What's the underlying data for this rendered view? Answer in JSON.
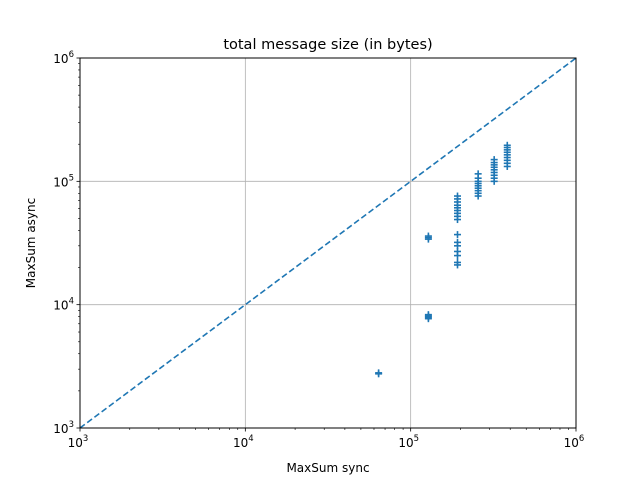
{
  "chart_data": {
    "type": "scatter",
    "title": "total message size (in bytes)",
    "xlabel": "MaxSum sync",
    "ylabel": "MaxSum async",
    "xscale": "log",
    "yscale": "log",
    "xlim": [
      1000,
      1000000
    ],
    "ylim": [
      1000,
      1000000
    ],
    "grid": true,
    "x_ticks": [
      {
        "base": "10",
        "exp": "3"
      },
      {
        "base": "10",
        "exp": "4"
      },
      {
        "base": "10",
        "exp": "5"
      },
      {
        "base": "10",
        "exp": "6"
      }
    ],
    "y_ticks": [
      {
        "base": "10",
        "exp": "3"
      },
      {
        "base": "10",
        "exp": "4"
      },
      {
        "base": "10",
        "exp": "5"
      },
      {
        "base": "10",
        "exp": "6"
      }
    ],
    "series": [
      {
        "marker": "+",
        "color": "#1f77b4",
        "points": [
          [
            64000,
            2750
          ],
          [
            64000,
            2800
          ],
          [
            128000,
            7700
          ],
          [
            128000,
            7900
          ],
          [
            128000,
            8100
          ],
          [
            128000,
            8300
          ],
          [
            128000,
            34000
          ],
          [
            128000,
            35000
          ],
          [
            128000,
            36000
          ],
          [
            192000,
            21000
          ],
          [
            192000,
            22000
          ],
          [
            192000,
            25000
          ],
          [
            192000,
            27000
          ],
          [
            192000,
            30000
          ],
          [
            192000,
            32000
          ],
          [
            192000,
            37000
          ],
          [
            192000,
            49000
          ],
          [
            192000,
            52000
          ],
          [
            192000,
            55000
          ],
          [
            192000,
            58000
          ],
          [
            192000,
            61000
          ],
          [
            192000,
            64000
          ],
          [
            192000,
            68000
          ],
          [
            192000,
            72000
          ],
          [
            192000,
            76000
          ],
          [
            256000,
            76000
          ],
          [
            256000,
            80000
          ],
          [
            256000,
            84000
          ],
          [
            256000,
            88000
          ],
          [
            256000,
            92000
          ],
          [
            256000,
            96000
          ],
          [
            256000,
            100000
          ],
          [
            256000,
            106000
          ],
          [
            256000,
            115000
          ],
          [
            320000,
            100000
          ],
          [
            320000,
            106000
          ],
          [
            320000,
            112000
          ],
          [
            320000,
            118000
          ],
          [
            320000,
            124000
          ],
          [
            320000,
            130000
          ],
          [
            320000,
            136000
          ],
          [
            320000,
            142000
          ],
          [
            320000,
            150000
          ],
          [
            384000,
            132000
          ],
          [
            384000,
            140000
          ],
          [
            384000,
            148000
          ],
          [
            384000,
            156000
          ],
          [
            384000,
            164000
          ],
          [
            384000,
            172000
          ],
          [
            384000,
            180000
          ],
          [
            384000,
            188000
          ],
          [
            384000,
            196000
          ]
        ]
      },
      {
        "style": "dashed-line",
        "color": "#1f77b4",
        "points": [
          [
            1000,
            1000
          ],
          [
            1000000,
            1000000
          ]
        ]
      }
    ]
  }
}
